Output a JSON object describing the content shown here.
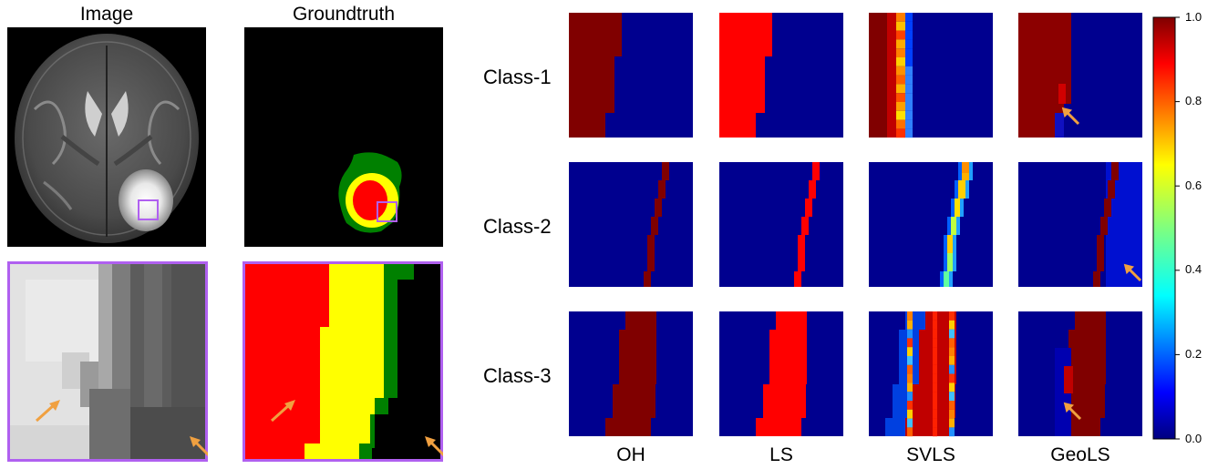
{
  "left_panel": {
    "image_title": "Image",
    "groundtruth_title": "Groundtruth"
  },
  "grid": {
    "row_labels": [
      "Class-1",
      "Class-2",
      "Class-3"
    ],
    "col_labels": [
      "OH",
      "LS",
      "SVLS",
      "GeoLS"
    ]
  },
  "colorbar": {
    "colormap": "jet",
    "range": [
      0.0,
      1.0
    ],
    "ticks": [
      "0.0",
      "0.2",
      "0.4",
      "0.6",
      "0.8",
      "1.0"
    ]
  },
  "colors": {
    "jet_dark_blue": "#00008f",
    "jet_dark_red": "#800000",
    "jet_red": "#ff0000",
    "highlight_box": "#b060f0",
    "arrow": "#f0a040",
    "gt_red": "#ff0000",
    "gt_yellow": "#ffff00",
    "gt_green": "#008000"
  }
}
